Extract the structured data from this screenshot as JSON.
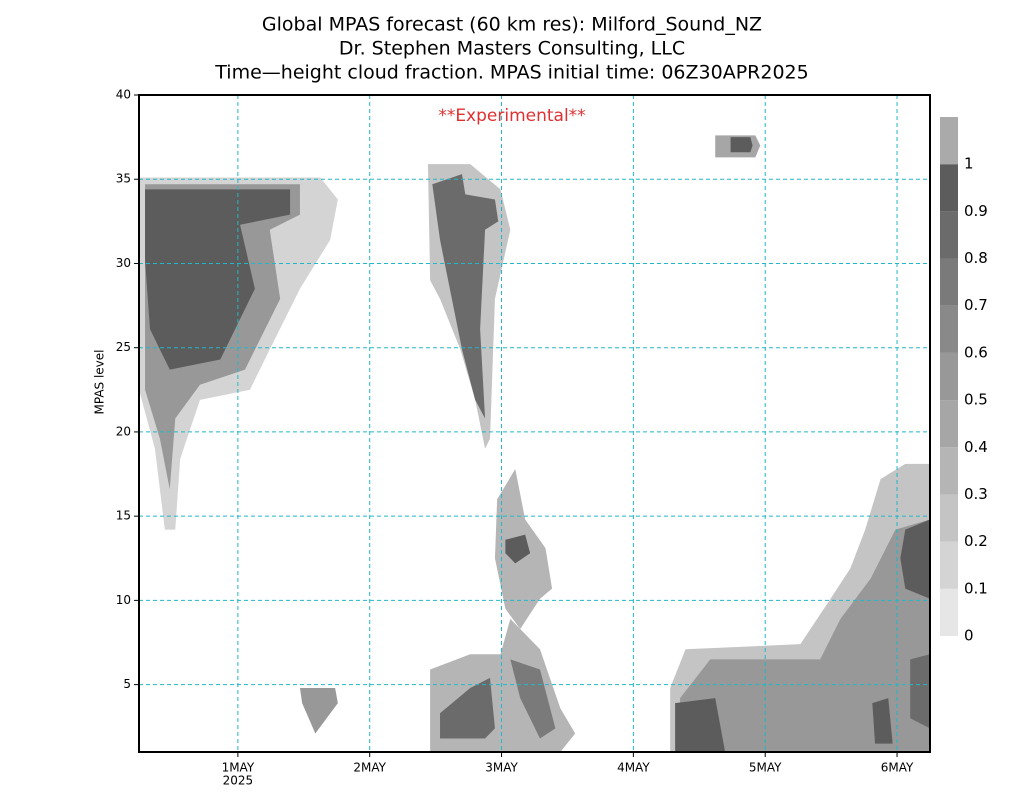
{
  "chart_data": {
    "type": "contour",
    "title": [
      "Global MPAS forecast (60 km res): Milford_Sound_NZ",
      "Dr. Stephen Masters Consulting, LLC",
      "Time—height cloud fraction.   MPAS initial time: 06Z30APR2025"
    ],
    "annotation": "**Experimental**",
    "annotation_color": "#e03030",
    "y_label": "MPAS level",
    "xlim": [
      -18,
      126
    ],
    "xticks": [
      {
        "value": 0,
        "label": "1MAY"
      },
      {
        "value": 24,
        "label": "2MAY"
      },
      {
        "value": 48,
        "label": "3MAY"
      },
      {
        "value": 72,
        "label": "4MAY"
      },
      {
        "value": 96,
        "label": "5MAY"
      },
      {
        "value": 120,
        "label": "6MAY"
      }
    ],
    "x_year_label": "2025",
    "ylim": [
      1,
      40
    ],
    "yticks": [
      5,
      10,
      15,
      20,
      25,
      30,
      35,
      40
    ],
    "grid": true,
    "grid_color": "#20b8c8",
    "colorbar": {
      "levels": [
        0,
        0.1,
        0.2,
        0.3,
        0.4,
        0.5,
        0.6,
        0.7,
        0.8,
        0.9,
        1
      ],
      "colors": [
        "#e6e6e6",
        "#d4d4d4",
        "#c4c4c4",
        "#b5b5b5",
        "#a6a6a6",
        "#989898",
        "#898989",
        "#7a7a7a",
        "#6b6b6b",
        "#5c5c5c",
        "#aaaaaa"
      ]
    },
    "regions": [
      {
        "fraction": 0.1,
        "points": [
          [
            -18,
            35.1
          ],
          [
            15,
            35.1
          ],
          [
            18.2,
            33.8
          ],
          [
            16.8,
            31.4
          ],
          [
            11.3,
            28.5
          ],
          [
            5.8,
            24.9
          ],
          [
            2.2,
            22.5
          ],
          [
            -6.9,
            21.9
          ],
          [
            -10.5,
            18.4
          ],
          [
            -11.4,
            14.2
          ],
          [
            -13.3,
            14.2
          ],
          [
            -15.1,
            19.0
          ],
          [
            -18,
            22.5
          ]
        ]
      },
      {
        "fraction": 0.5,
        "points": [
          [
            -16.9,
            34.7
          ],
          [
            11.3,
            34.7
          ],
          [
            11.3,
            32.9
          ],
          [
            5.8,
            32.0
          ],
          [
            7.7,
            27.9
          ],
          [
            1.3,
            23.7
          ],
          [
            -6.9,
            22.8
          ],
          [
            -11.4,
            20.8
          ],
          [
            -12.4,
            16.6
          ],
          [
            -14.2,
            19.6
          ],
          [
            -16.9,
            22.5
          ]
        ]
      },
      {
        "fraction": 0.9,
        "points": [
          [
            -16.9,
            34.4
          ],
          [
            9.5,
            34.4
          ],
          [
            9.5,
            32.9
          ],
          [
            0.4,
            32.3
          ],
          [
            3.1,
            28.5
          ],
          [
            -3.2,
            24.3
          ],
          [
            -12.4,
            23.7
          ],
          [
            -16,
            26.1
          ],
          [
            -16.9,
            30.2
          ]
        ]
      },
      {
        "fraction": 0.5,
        "points": [
          [
            11.3,
            4.8
          ],
          [
            17.7,
            4.8
          ],
          [
            18.2,
            3.9
          ],
          [
            14.1,
            2.1
          ],
          [
            11.7,
            3.9
          ]
        ]
      },
      {
        "fraction": 0.2,
        "points": [
          [
            34.6,
            35.9
          ],
          [
            42.3,
            35.9
          ],
          [
            47.8,
            34.4
          ],
          [
            49.6,
            32.0
          ],
          [
            46.8,
            27.9
          ],
          [
            45.9,
            19.6
          ],
          [
            45.0,
            19.0
          ],
          [
            43.2,
            21.9
          ],
          [
            40.5,
            24.9
          ],
          [
            36.8,
            27.9
          ],
          [
            35.0,
            29.0
          ]
        ]
      },
      {
        "fraction": 0.8,
        "points": [
          [
            35.4,
            34.7
          ],
          [
            40.8,
            35.3
          ],
          [
            41.4,
            34.1
          ],
          [
            46.8,
            33.8
          ],
          [
            47.4,
            32.5
          ],
          [
            45.0,
            32.0
          ],
          [
            44.1,
            26.1
          ],
          [
            45.0,
            20.8
          ],
          [
            43.2,
            21.9
          ],
          [
            40.8,
            24.9
          ],
          [
            36.8,
            31.4
          ]
        ]
      },
      {
        "fraction": 0.3,
        "points": [
          [
            47.2,
            16.0
          ],
          [
            50.5,
            17.8
          ],
          [
            52.3,
            14.8
          ],
          [
            56.0,
            13.1
          ],
          [
            57.2,
            10.7
          ],
          [
            55.0,
            10.1
          ],
          [
            51.4,
            8.3
          ],
          [
            48.7,
            9.5
          ],
          [
            46.8,
            12.5
          ]
        ]
      },
      {
        "fraction": 0.9,
        "points": [
          [
            48.7,
            13.6
          ],
          [
            52.3,
            13.9
          ],
          [
            53.2,
            12.8
          ],
          [
            50.5,
            12.2
          ],
          [
            48.7,
            12.8
          ]
        ]
      },
      {
        "fraction": 0.3,
        "points": [
          [
            35.0,
            5.9
          ],
          [
            42.3,
            6.8
          ],
          [
            47.8,
            6.8
          ],
          [
            49.6,
            8.9
          ],
          [
            55.0,
            7.1
          ],
          [
            58.7,
            3.6
          ],
          [
            61.4,
            2.1
          ],
          [
            58.7,
            1
          ],
          [
            35.0,
            1
          ]
        ]
      },
      {
        "fraction": 0.8,
        "points": [
          [
            36.8,
            3.3
          ],
          [
            42.3,
            4.8
          ],
          [
            45.9,
            5.4
          ],
          [
            46.8,
            2.4
          ],
          [
            45.0,
            1.8
          ],
          [
            36.8,
            1.8
          ]
        ]
      },
      {
        "fraction": 0.7,
        "points": [
          [
            49.6,
            6.5
          ],
          [
            55.0,
            5.9
          ],
          [
            57.8,
            2.4
          ],
          [
            55.0,
            1.8
          ],
          [
            51.4,
            4.2
          ]
        ]
      },
      {
        "fraction": 0.4,
        "points": [
          [
            86.9,
            37.6
          ],
          [
            94.2,
            37.6
          ],
          [
            95.1,
            37.0
          ],
          [
            94.2,
            36.3
          ],
          [
            86.9,
            36.3
          ]
        ]
      },
      {
        "fraction": 0.9,
        "points": [
          [
            89.7,
            37.5
          ],
          [
            93.3,
            37.5
          ],
          [
            93.7,
            37.0
          ],
          [
            93.3,
            36.6
          ],
          [
            89.7,
            36.6
          ]
        ]
      },
      {
        "fraction": 0.2,
        "points": [
          [
            78.7,
            4.8
          ],
          [
            81.5,
            7.1
          ],
          [
            102.4,
            7.4
          ],
          [
            107.9,
            10.1
          ],
          [
            111.5,
            11.9
          ],
          [
            114.2,
            14.2
          ],
          [
            117.0,
            17.2
          ],
          [
            121.5,
            18.1
          ],
          [
            126,
            18.1
          ],
          [
            126,
            1
          ],
          [
            78.7,
            1
          ]
        ]
      },
      {
        "fraction": 0.5,
        "points": [
          [
            80.5,
            4.2
          ],
          [
            86,
            6.5
          ],
          [
            106,
            6.5
          ],
          [
            109.7,
            8.9
          ],
          [
            115.2,
            11.3
          ],
          [
            119.7,
            14.2
          ],
          [
            126,
            14.8
          ],
          [
            126,
            1
          ],
          [
            80.5,
            1
          ]
        ]
      },
      {
        "fraction": 0.9,
        "points": [
          [
            79.6,
            3.9
          ],
          [
            86.9,
            4.2
          ],
          [
            88.7,
            1
          ],
          [
            79.6,
            1
          ]
        ]
      },
      {
        "fraction": 0.9,
        "points": [
          [
            121.5,
            14.2
          ],
          [
            126,
            14.8
          ],
          [
            126,
            10.1
          ],
          [
            121.5,
            10.7
          ],
          [
            120.6,
            12.5
          ]
        ]
      },
      {
        "fraction": 0.8,
        "points": [
          [
            122.4,
            6.5
          ],
          [
            126,
            6.8
          ],
          [
            126,
            2.4
          ],
          [
            122.4,
            3.0
          ]
        ]
      },
      {
        "fraction": 0.9,
        "points": [
          [
            115.5,
            3.9
          ],
          [
            118.4,
            4.2
          ],
          [
            119.2,
            1.5
          ],
          [
            116,
            1.5
          ]
        ]
      }
    ]
  }
}
